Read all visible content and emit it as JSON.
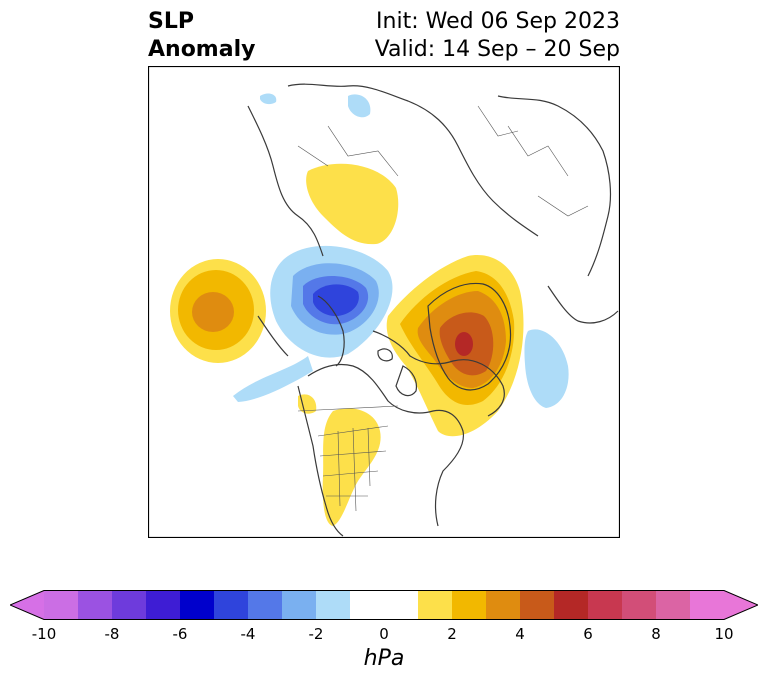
{
  "header": {
    "title_line1": "SLP",
    "title_line2": "Anomaly",
    "init": "Init: Wed 06 Sep 2023",
    "valid": "Valid: 14 Sep – 20 Sep"
  },
  "colorbar": {
    "unit": "hPa",
    "ticks": [
      "-10",
      "-8",
      "-6",
      "-4",
      "-2",
      "0",
      "2",
      "4",
      "6",
      "8",
      "10"
    ],
    "bins": [
      {
        "from": -11,
        "to": -10,
        "color": "#d670e6"
      },
      {
        "from": -10,
        "to": -9,
        "color": "#cb6ee4"
      },
      {
        "from": -9,
        "to": -8,
        "color": "#9b52e2"
      },
      {
        "from": -8,
        "to": -7,
        "color": "#6e3bdc"
      },
      {
        "from": -7,
        "to": -6,
        "color": "#3e1dd4"
      },
      {
        "from": -6,
        "to": -5,
        "color": "#0000cc"
      },
      {
        "from": -5,
        "to": -4,
        "color": "#2f44dc"
      },
      {
        "from": -4,
        "to": -3,
        "color": "#5478e8"
      },
      {
        "from": -3,
        "to": -2,
        "color": "#7ab0f0"
      },
      {
        "from": -2,
        "to": -1,
        "color": "#aedcf8"
      },
      {
        "from": -1,
        "to": 1,
        "color": "#ffffff"
      },
      {
        "from": 1,
        "to": 2,
        "color": "#fde04a"
      },
      {
        "from": 2,
        "to": 3,
        "color": "#f2b800"
      },
      {
        "from": 3,
        "to": 4,
        "color": "#df8c10"
      },
      {
        "from": 4,
        "to": 5,
        "color": "#c85a1a"
      },
      {
        "from": 5,
        "to": 6,
        "color": "#b42826"
      },
      {
        "from": 6,
        "to": 7,
        "color": "#c83850"
      },
      {
        "from": 7,
        "to": 8,
        "color": "#d24e78"
      },
      {
        "from": 8,
        "to": 9,
        "color": "#db64a4"
      },
      {
        "from": 9,
        "to": 10,
        "color": "#e876d8"
      },
      {
        "from": 10,
        "to": 11,
        "color": "#e876d8"
      }
    ]
  },
  "map": {
    "projection": "polar-stereographic",
    "region": "North America / North Atlantic / Arctic",
    "anomalies": [
      {
        "name": "North Pacific high",
        "sign": "positive",
        "peak_hpa": 4
      },
      {
        "name": "Canada / Beaufort low",
        "sign": "negative",
        "peak_hpa": -5
      },
      {
        "name": "Greenland high",
        "sign": "positive",
        "peak_hpa": 6
      },
      {
        "name": "Siberia high",
        "sign": "positive",
        "peak_hpa": 2
      },
      {
        "name": "Central US high",
        "sign": "positive",
        "peak_hpa": 2
      },
      {
        "name": "North Atlantic low",
        "sign": "negative",
        "peak_hpa": -2
      }
    ]
  }
}
